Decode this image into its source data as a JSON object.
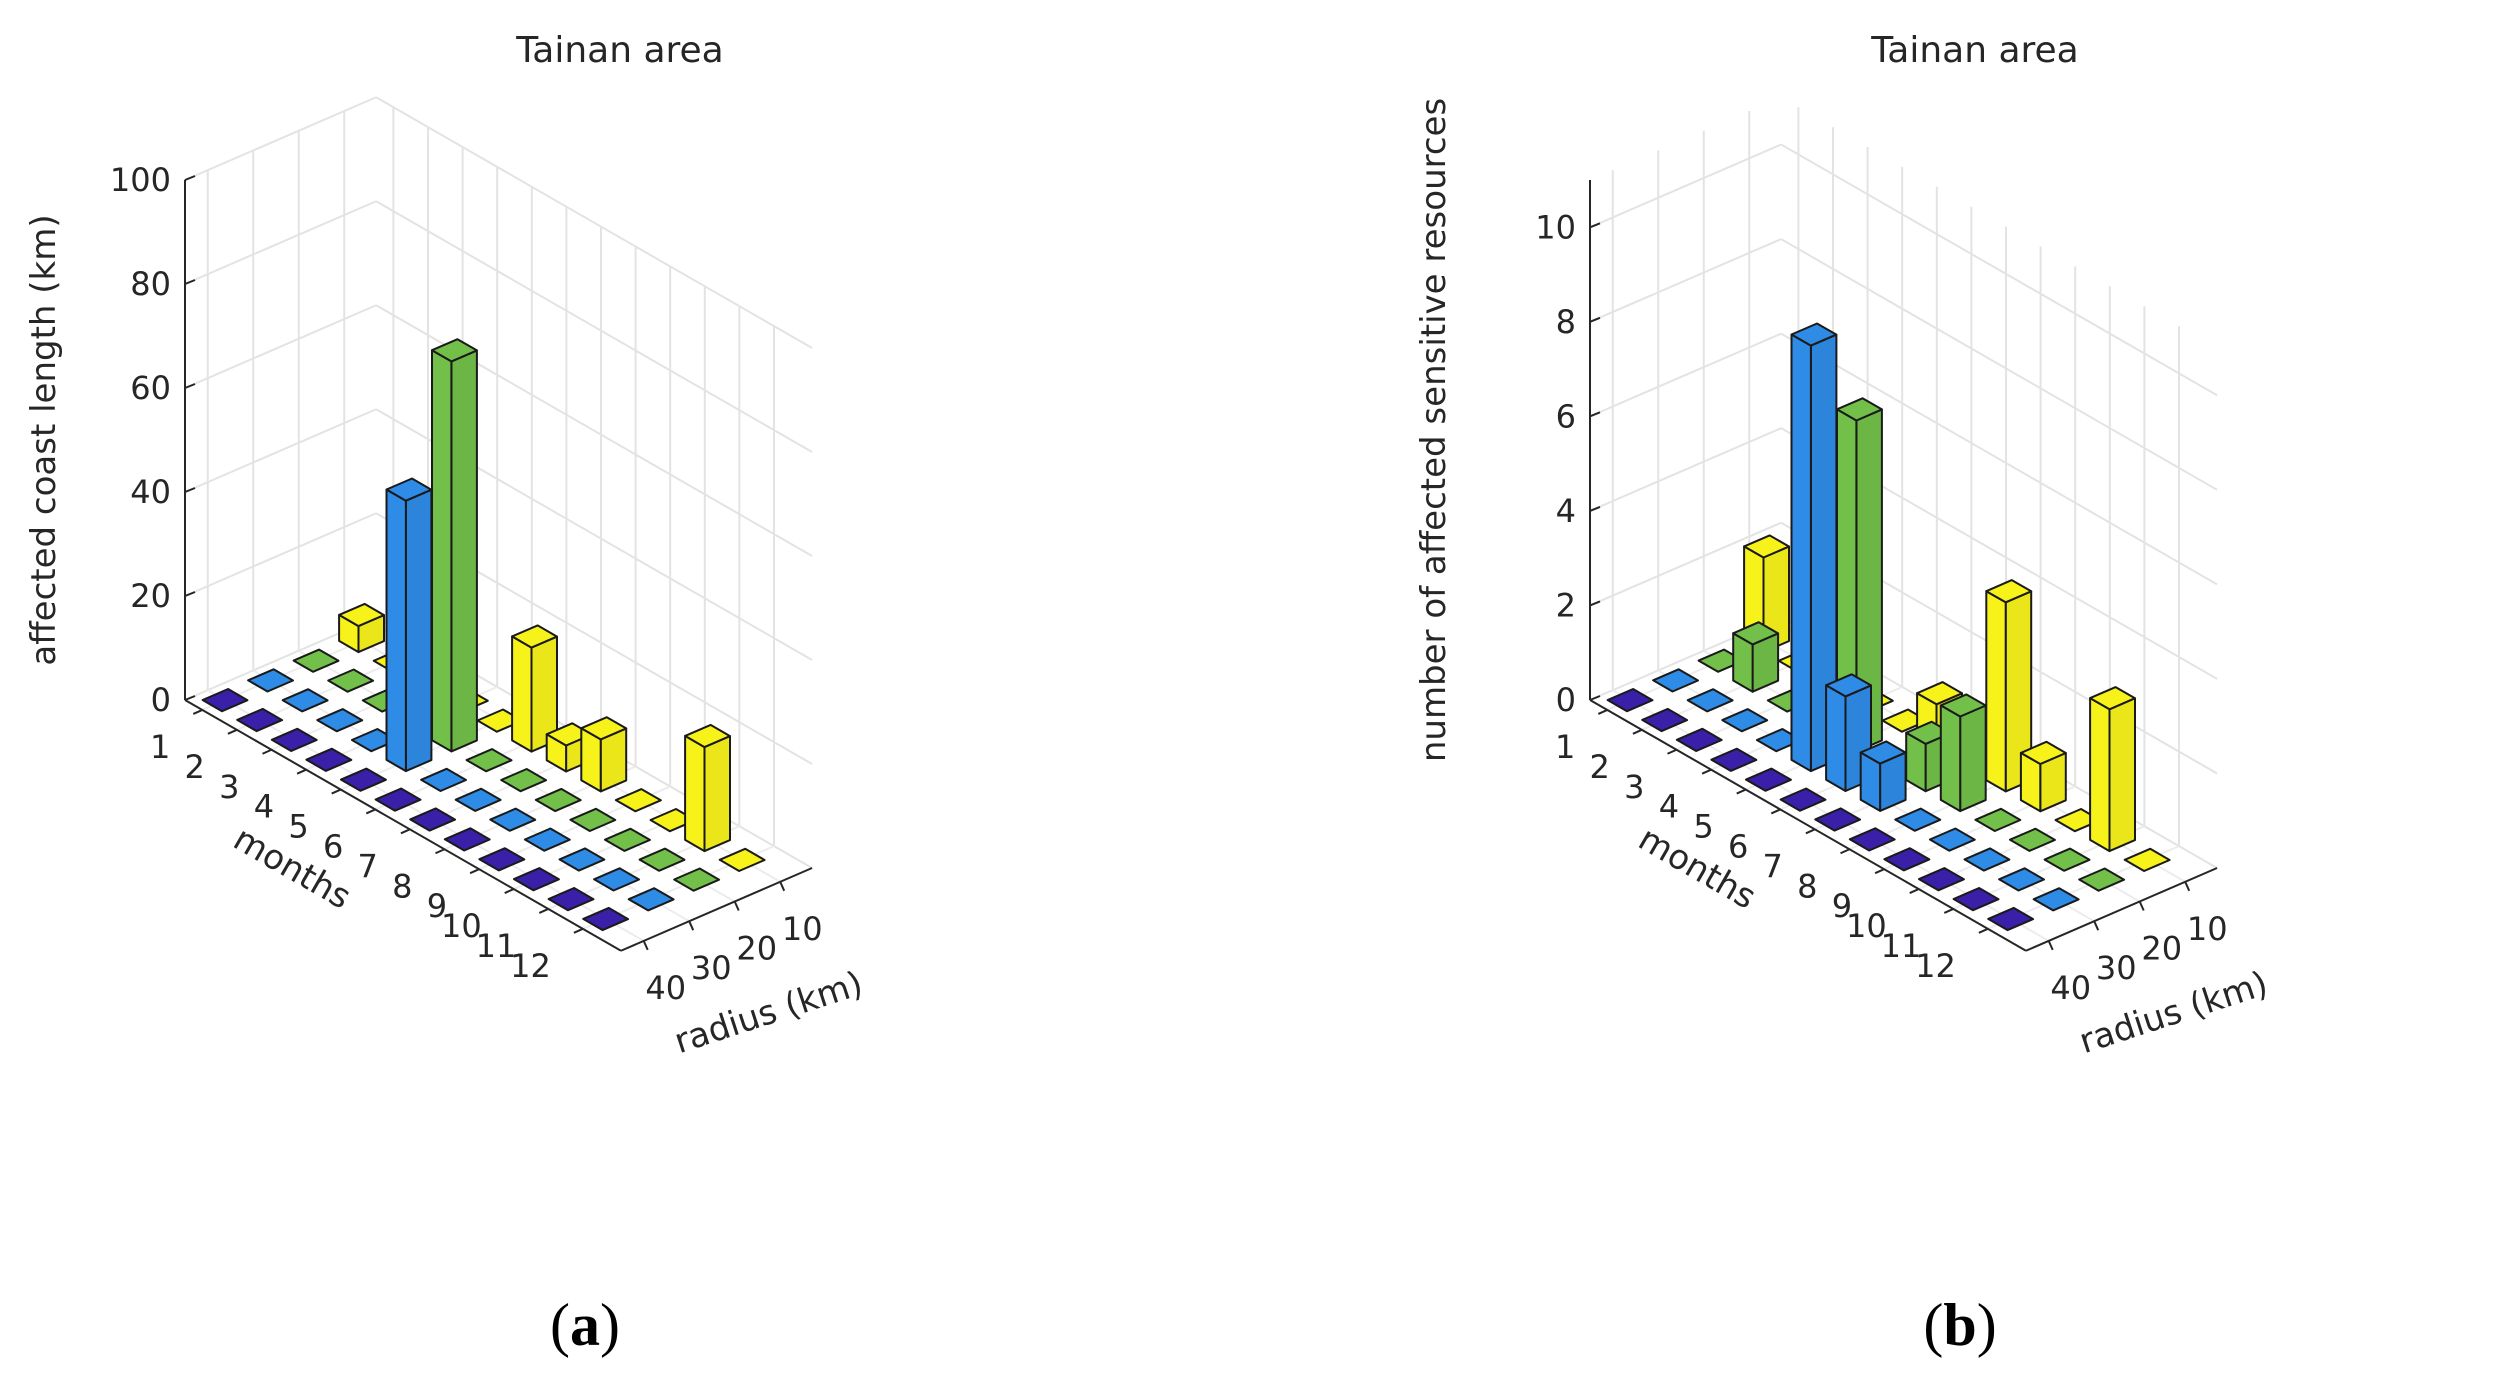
{
  "chart_data": [
    {
      "type": "bar3d",
      "panel_label": "a",
      "title": "Tainan area",
      "zlabel": "affected coast length (km)",
      "xlabel": "months",
      "ylabel": "radius (km)",
      "months": [
        "1",
        "2",
        "3",
        "4",
        "5",
        "6",
        "7",
        "8",
        "9",
        "10",
        "11",
        "12"
      ],
      "radius_ticks": [
        "40",
        "30",
        "20",
        "10"
      ],
      "radius_values": [
        40,
        30,
        20,
        10
      ],
      "zticks": [
        "0",
        "20",
        "40",
        "60",
        "80",
        "100"
      ],
      "zlim": [
        0,
        100
      ],
      "colors": {
        "40": "#3a1fa8",
        "30": "#2e8be6",
        "20": "#72c04a",
        "10": "#f6f21a"
      },
      "values": {
        "40": [
          0,
          0,
          0,
          0,
          0,
          0,
          0,
          0,
          0,
          0,
          0,
          0
        ],
        "30": [
          0,
          0,
          0,
          0,
          52,
          0,
          0,
          0,
          0,
          0,
          0,
          0
        ],
        "20": [
          0,
          0,
          0,
          0,
          75,
          0,
          0,
          0,
          0,
          0,
          0,
          0
        ],
        "10": [
          5,
          0,
          0,
          0,
          0,
          20,
          5,
          10,
          0,
          0,
          20,
          0
        ]
      }
    },
    {
      "type": "bar3d",
      "panel_label": "b",
      "title": "Tainan area",
      "zlabel": "number of affected sensitive resources",
      "xlabel": "months",
      "ylabel": "radius (km)",
      "months": [
        "1",
        "2",
        "3",
        "4",
        "5",
        "6",
        "7",
        "8",
        "9",
        "10",
        "11",
        "12"
      ],
      "radius_ticks": [
        "40",
        "30",
        "20",
        "10"
      ],
      "radius_values": [
        40,
        30,
        20,
        10
      ],
      "zticks": [
        "0",
        "2",
        "4",
        "6",
        "8",
        "10"
      ],
      "zlim": [
        0,
        11
      ],
      "colors": {
        "40": "#3a1fa8",
        "30": "#2e8be6",
        "20": "#72c04a",
        "10": "#f6f21a"
      },
      "values": {
        "40": [
          0,
          0,
          0,
          0,
          0,
          0,
          0,
          0,
          0,
          0,
          0,
          0
        ],
        "30": [
          0,
          0,
          0,
          0,
          9,
          2,
          1,
          0,
          0,
          0,
          0,
          0
        ],
        "20": [
          0,
          1,
          0,
          0,
          7,
          0,
          1,
          2,
          0,
          0,
          0,
          0
        ],
        "10": [
          2,
          0,
          0,
          0,
          0,
          1,
          0,
          4,
          1,
          0,
          3,
          0
        ]
      }
    }
  ]
}
